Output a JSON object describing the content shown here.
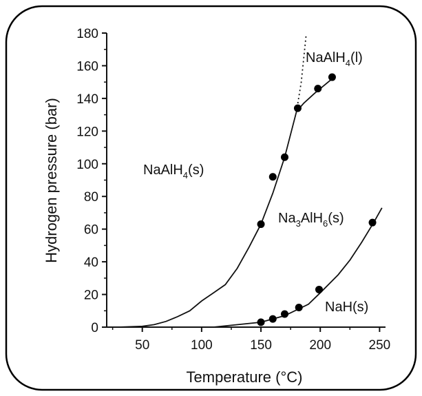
{
  "chart_data": {
    "type": "line",
    "title": "",
    "xlabel": "Temperature (°C)",
    "ylabel": "Hydrogen pressure (bar)",
    "xlim": [
      20,
      255
    ],
    "ylim": [
      0,
      180
    ],
    "x_ticks": [
      50,
      100,
      150,
      200,
      250
    ],
    "y_ticks": [
      0,
      20,
      40,
      60,
      80,
      100,
      120,
      140,
      160,
      180
    ],
    "grid": false,
    "legend": "none",
    "region_labels": {
      "solid_alanate": "NaAlH4(s)",
      "liquid_alanate": "NaAlH4(l)",
      "hexahydride": "Na3AlH6(s)",
      "hydride": "NaH(s)"
    },
    "series": [
      {
        "line": [
          [
            30,
            0
          ],
          [
            50,
            0.5
          ],
          [
            60,
            1.5
          ],
          [
            70,
            3.5
          ],
          [
            80,
            6.5
          ],
          [
            90,
            10
          ],
          [
            100,
            16
          ],
          [
            110,
            21
          ],
          [
            120,
            26
          ],
          [
            130,
            36
          ],
          [
            140,
            49
          ],
          [
            150,
            63
          ],
          [
            160,
            82
          ],
          [
            170,
            104
          ],
          [
            180,
            132
          ],
          [
            186,
            137
          ],
          [
            195,
            143
          ],
          [
            210,
            152
          ]
        ],
        "points": [
          [
            150,
            63
          ],
          [
            160,
            92
          ],
          [
            170,
            104
          ],
          [
            181,
            134
          ],
          [
            198,
            146
          ],
          [
            210,
            153
          ]
        ],
        "extrapolation": [
          [
            180,
            132
          ],
          [
            184,
            150
          ],
          [
            188,
            178
          ]
        ]
      },
      {
        "line": [
          [
            110,
            0
          ],
          [
            150,
            3
          ],
          [
            170,
            7
          ],
          [
            190,
            14
          ],
          [
            200,
            21
          ],
          [
            215,
            32
          ],
          [
            225,
            41
          ],
          [
            235,
            52
          ],
          [
            245,
            64
          ],
          [
            252,
            73
          ]
        ],
        "points": [
          [
            150,
            3
          ],
          [
            160,
            5
          ],
          [
            170,
            8
          ],
          [
            182,
            12
          ],
          [
            199,
            23
          ],
          [
            244,
            64
          ]
        ]
      }
    ]
  }
}
